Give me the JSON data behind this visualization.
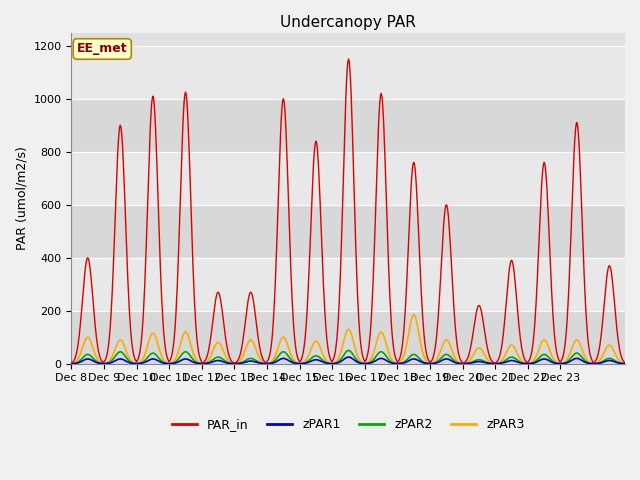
{
  "title": "Undercanopy PAR",
  "ylabel": "PAR (umol/m2/s)",
  "xlabel": "",
  "annotation": "EE_met",
  "ylim": [
    0,
    1250
  ],
  "fig_bg_color": "#f0f0f0",
  "plot_bg_color": "#e0e0e0",
  "grid_color": "#ffffff",
  "series": [
    "PAR_in",
    "zPAR1",
    "zPAR2",
    "zPAR3"
  ],
  "colors": {
    "PAR_in": "#dd0000",
    "zPAR1": "#0000cc",
    "zPAR2": "#00aa00",
    "zPAR3": "#ffaa00"
  },
  "day_peaks": {
    "PAR_in": [
      400,
      900,
      1010,
      1025,
      270,
      270,
      1000,
      840,
      1150,
      1020,
      760,
      600,
      220,
      390,
      760,
      910,
      370
    ],
    "zPAR1": [
      18,
      18,
      18,
      18,
      12,
      10,
      20,
      15,
      25,
      20,
      18,
      18,
      8,
      12,
      18,
      20,
      12
    ],
    "zPAR2": [
      35,
      45,
      40,
      45,
      25,
      20,
      45,
      30,
      50,
      45,
      35,
      35,
      15,
      25,
      35,
      40,
      20
    ],
    "zPAR3": [
      100,
      90,
      115,
      120,
      80,
      90,
      100,
      85,
      130,
      120,
      185,
      90,
      60,
      70,
      90,
      90,
      70
    ]
  },
  "n_days": 17,
  "pts_per_day": 48,
  "xtick_labels": [
    "Dec 8",
    "Dec 9",
    "Dec 10",
    "Dec 11",
    "Dec 12",
    "Dec 13",
    "Dec 14",
    "Dec 15",
    "Dec 16",
    "Dec 17",
    "Dec 18",
    "Dec 19",
    "Dec 20",
    "Dec 21",
    "Dec 22",
    "Dec 23"
  ],
  "xtick_positions": [
    0,
    48,
    96,
    144,
    192,
    240,
    288,
    336,
    384,
    432,
    480,
    528,
    576,
    624,
    672,
    720
  ],
  "lw": {
    "PAR_in": 1.0,
    "zPAR1": 1.2,
    "zPAR2": 1.2,
    "zPAR3": 1.2
  },
  "title_fontsize": 11,
  "axis_fontsize": 9,
  "tick_fontsize": 8,
  "legend_fontsize": 9,
  "yticks": [
    0,
    200,
    400,
    600,
    800,
    1000,
    1200
  ],
  "band_colors": [
    "#d8d8d8",
    "#e8e8e8"
  ]
}
